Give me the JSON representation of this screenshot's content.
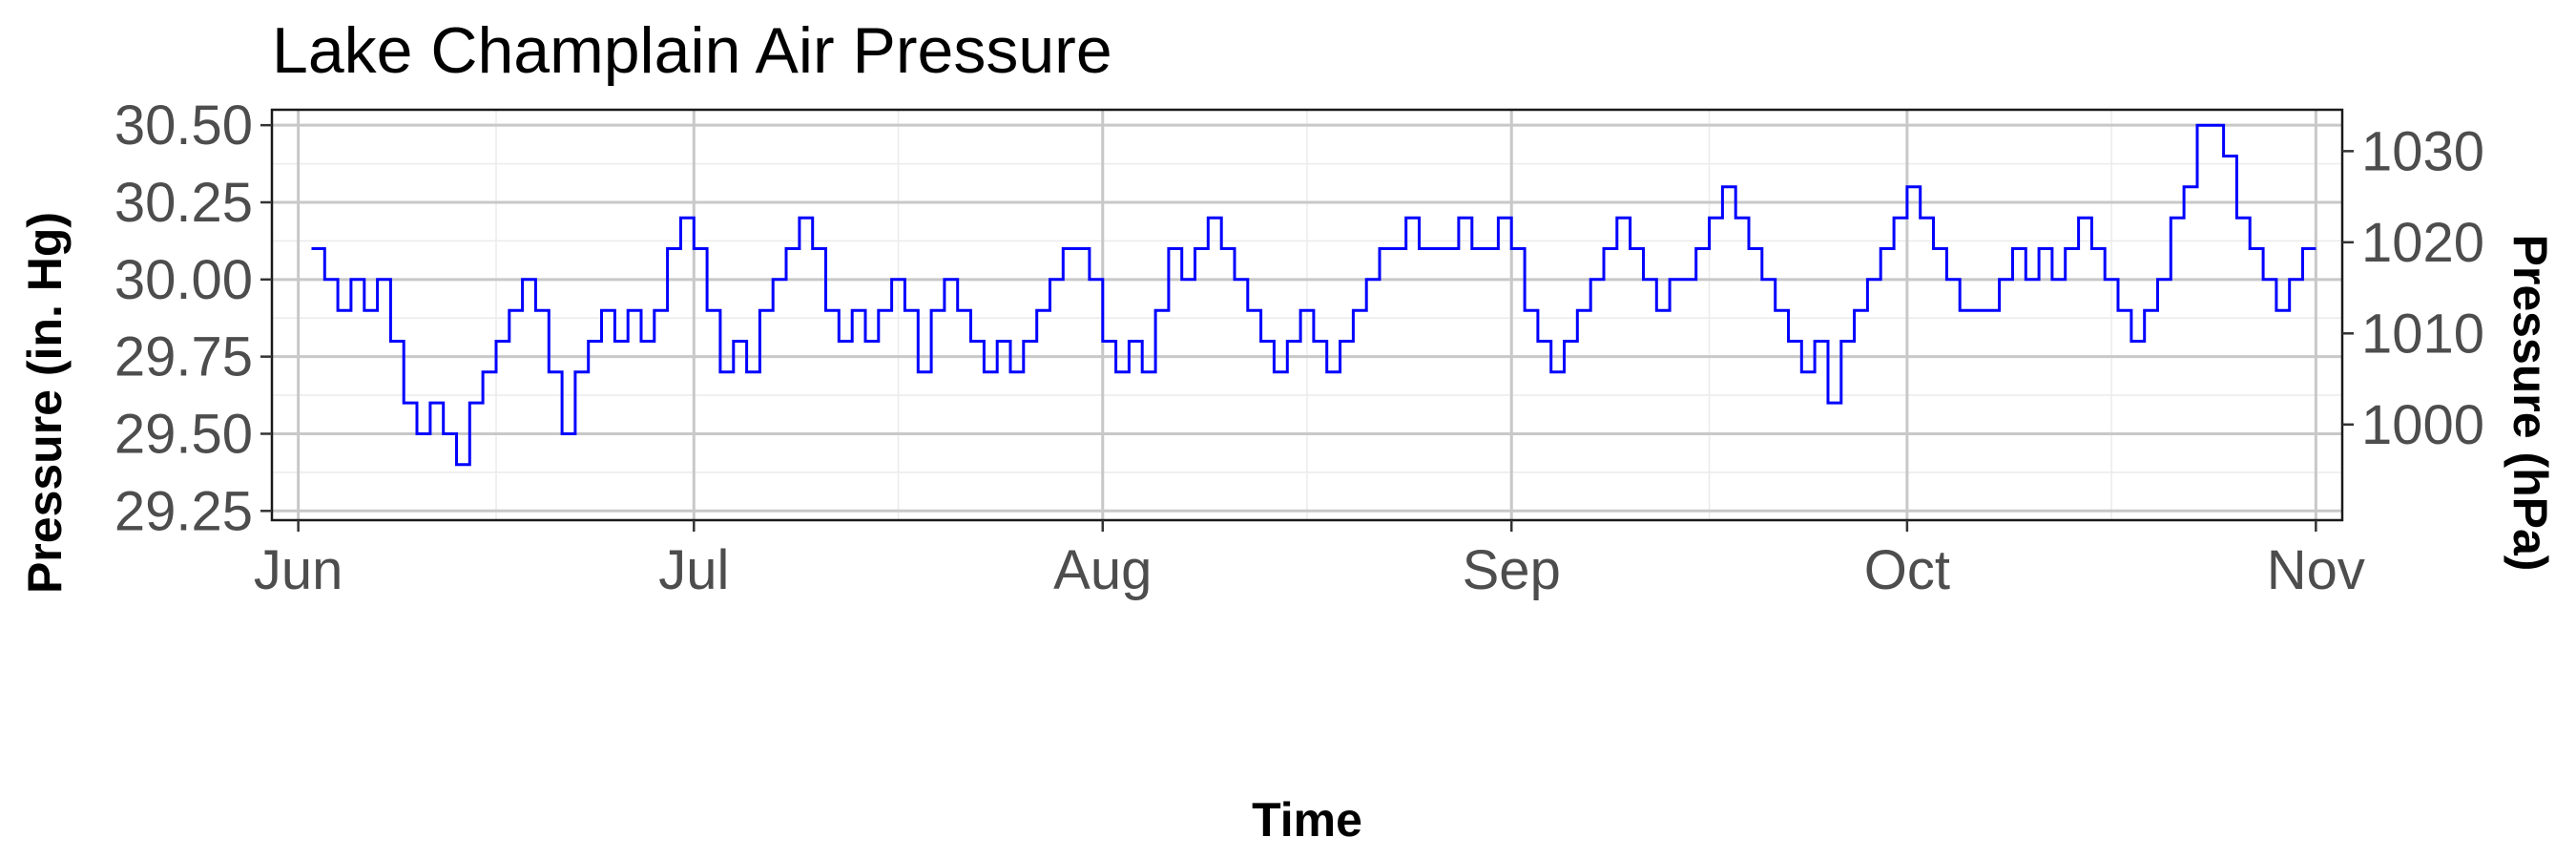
{
  "chart_data": {
    "type": "line",
    "title": "Lake Champlain Air Pressure",
    "xlabel": "Time",
    "ylabel": "Pressure (in. Hg)",
    "y2label": "Pressure (hPa)",
    "x_ticks": [
      "Jun",
      "Jul",
      "Aug",
      "Sep",
      "Oct",
      "Nov"
    ],
    "y_ticks": [
      "29.25",
      "29.50",
      "29.75",
      "30.00",
      "30.25",
      "30.50"
    ],
    "y2_ticks": [
      "1000",
      "1010",
      "1020",
      "1030"
    ],
    "x_range": [
      "2023-05-30",
      "2023-11-03"
    ],
    "ylim": [
      29.22,
      30.55
    ],
    "grid": true,
    "line_color": "#0000ff",
    "series": [
      {
        "points": [
          [
            "2023-06-02",
            30.1
          ],
          [
            "2023-06-03",
            30.0
          ],
          [
            "2023-06-04",
            29.9
          ],
          [
            "2023-06-05",
            30.0
          ],
          [
            "2023-06-06",
            29.9
          ],
          [
            "2023-06-07",
            30.0
          ],
          [
            "2023-06-08",
            29.8
          ],
          [
            "2023-06-09",
            29.6
          ],
          [
            "2023-06-10",
            29.5
          ],
          [
            "2023-06-11",
            29.6
          ],
          [
            "2023-06-12",
            29.5
          ],
          [
            "2023-06-13",
            29.4
          ],
          [
            "2023-06-14",
            29.6
          ],
          [
            "2023-06-15",
            29.7
          ],
          [
            "2023-06-16",
            29.8
          ],
          [
            "2023-06-17",
            29.9
          ],
          [
            "2023-06-18",
            30.0
          ],
          [
            "2023-06-19",
            29.9
          ],
          [
            "2023-06-20",
            29.7
          ],
          [
            "2023-06-21",
            29.5
          ],
          [
            "2023-06-22",
            29.7
          ],
          [
            "2023-06-23",
            29.8
          ],
          [
            "2023-06-24",
            29.9
          ],
          [
            "2023-06-25",
            29.8
          ],
          [
            "2023-06-26",
            29.9
          ],
          [
            "2023-06-27",
            29.8
          ],
          [
            "2023-06-28",
            29.9
          ],
          [
            "2023-06-29",
            30.1
          ],
          [
            "2023-06-30",
            30.2
          ],
          [
            "2023-07-01",
            30.1
          ],
          [
            "2023-07-02",
            29.9
          ],
          [
            "2023-07-03",
            29.7
          ],
          [
            "2023-07-04",
            29.8
          ],
          [
            "2023-07-05",
            29.7
          ],
          [
            "2023-07-06",
            29.9
          ],
          [
            "2023-07-07",
            30.0
          ],
          [
            "2023-07-08",
            30.1
          ],
          [
            "2023-07-09",
            30.2
          ],
          [
            "2023-07-10",
            30.1
          ],
          [
            "2023-07-11",
            29.9
          ],
          [
            "2023-07-12",
            29.8
          ],
          [
            "2023-07-13",
            29.9
          ],
          [
            "2023-07-14",
            29.8
          ],
          [
            "2023-07-15",
            29.9
          ],
          [
            "2023-07-16",
            30.0
          ],
          [
            "2023-07-17",
            29.9
          ],
          [
            "2023-07-18",
            29.7
          ],
          [
            "2023-07-19",
            29.9
          ],
          [
            "2023-07-20",
            30.0
          ],
          [
            "2023-07-21",
            29.9
          ],
          [
            "2023-07-22",
            29.8
          ],
          [
            "2023-07-23",
            29.7
          ],
          [
            "2023-07-24",
            29.8
          ],
          [
            "2023-07-25",
            29.7
          ],
          [
            "2023-07-26",
            29.8
          ],
          [
            "2023-07-27",
            29.9
          ],
          [
            "2023-07-28",
            30.0
          ],
          [
            "2023-07-29",
            30.1
          ],
          [
            "2023-07-30",
            30.1
          ],
          [
            "2023-07-31",
            30.0
          ],
          [
            "2023-08-01",
            29.8
          ],
          [
            "2023-08-02",
            29.7
          ],
          [
            "2023-08-03",
            29.8
          ],
          [
            "2023-08-04",
            29.7
          ],
          [
            "2023-08-05",
            29.9
          ],
          [
            "2023-08-06",
            30.1
          ],
          [
            "2023-08-07",
            30.0
          ],
          [
            "2023-08-08",
            30.1
          ],
          [
            "2023-08-09",
            30.2
          ],
          [
            "2023-08-10",
            30.1
          ],
          [
            "2023-08-11",
            30.0
          ],
          [
            "2023-08-12",
            29.9
          ],
          [
            "2023-08-13",
            29.8
          ],
          [
            "2023-08-14",
            29.7
          ],
          [
            "2023-08-15",
            29.8
          ],
          [
            "2023-08-16",
            29.9
          ],
          [
            "2023-08-17",
            29.8
          ],
          [
            "2023-08-18",
            29.7
          ],
          [
            "2023-08-19",
            29.8
          ],
          [
            "2023-08-20",
            29.9
          ],
          [
            "2023-08-21",
            30.0
          ],
          [
            "2023-08-22",
            30.1
          ],
          [
            "2023-08-23",
            30.1
          ],
          [
            "2023-08-24",
            30.2
          ],
          [
            "2023-08-25",
            30.1
          ],
          [
            "2023-08-26",
            30.1
          ],
          [
            "2023-08-27",
            30.1
          ],
          [
            "2023-08-28",
            30.2
          ],
          [
            "2023-08-29",
            30.1
          ],
          [
            "2023-08-30",
            30.1
          ],
          [
            "2023-08-31",
            30.2
          ],
          [
            "2023-09-01",
            30.1
          ],
          [
            "2023-09-02",
            29.9
          ],
          [
            "2023-09-03",
            29.8
          ],
          [
            "2023-09-04",
            29.7
          ],
          [
            "2023-09-05",
            29.8
          ],
          [
            "2023-09-06",
            29.9
          ],
          [
            "2023-09-07",
            30.0
          ],
          [
            "2023-09-08",
            30.1
          ],
          [
            "2023-09-09",
            30.2
          ],
          [
            "2023-09-10",
            30.1
          ],
          [
            "2023-09-11",
            30.0
          ],
          [
            "2023-09-12",
            29.9
          ],
          [
            "2023-09-13",
            30.0
          ],
          [
            "2023-09-14",
            30.0
          ],
          [
            "2023-09-15",
            30.1
          ],
          [
            "2023-09-16",
            30.2
          ],
          [
            "2023-09-17",
            30.3
          ],
          [
            "2023-09-18",
            30.2
          ],
          [
            "2023-09-19",
            30.1
          ],
          [
            "2023-09-20",
            30.0
          ],
          [
            "2023-09-21",
            29.9
          ],
          [
            "2023-09-22",
            29.8
          ],
          [
            "2023-09-23",
            29.7
          ],
          [
            "2023-09-24",
            29.8
          ],
          [
            "2023-09-25",
            29.6
          ],
          [
            "2023-09-26",
            29.8
          ],
          [
            "2023-09-27",
            29.9
          ],
          [
            "2023-09-28",
            30.0
          ],
          [
            "2023-09-29",
            30.1
          ],
          [
            "2023-09-30",
            30.2
          ],
          [
            "2023-10-01",
            30.3
          ],
          [
            "2023-10-02",
            30.2
          ],
          [
            "2023-10-03",
            30.1
          ],
          [
            "2023-10-04",
            30.0
          ],
          [
            "2023-10-05",
            29.9
          ],
          [
            "2023-10-06",
            29.9
          ],
          [
            "2023-10-07",
            29.9
          ],
          [
            "2023-10-08",
            30.0
          ],
          [
            "2023-10-09",
            30.1
          ],
          [
            "2023-10-10",
            30.0
          ],
          [
            "2023-10-11",
            30.1
          ],
          [
            "2023-10-12",
            30.0
          ],
          [
            "2023-10-13",
            30.1
          ],
          [
            "2023-10-14",
            30.2
          ],
          [
            "2023-10-15",
            30.1
          ],
          [
            "2023-10-16",
            30.0
          ],
          [
            "2023-10-17",
            29.9
          ],
          [
            "2023-10-18",
            29.8
          ],
          [
            "2023-10-19",
            29.9
          ],
          [
            "2023-10-20",
            30.0
          ],
          [
            "2023-10-21",
            30.2
          ],
          [
            "2023-10-22",
            30.3
          ],
          [
            "2023-10-23",
            30.5
          ],
          [
            "2023-10-24",
            30.5
          ],
          [
            "2023-10-25",
            30.4
          ],
          [
            "2023-10-26",
            30.2
          ],
          [
            "2023-10-27",
            30.1
          ],
          [
            "2023-10-28",
            30.0
          ],
          [
            "2023-10-29",
            29.9
          ],
          [
            "2023-10-30",
            30.0
          ],
          [
            "2023-10-31",
            30.1
          ]
        ]
      }
    ]
  }
}
